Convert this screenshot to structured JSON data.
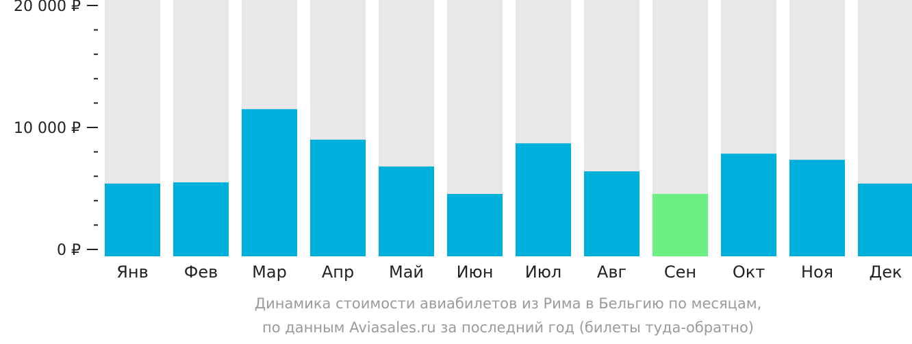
{
  "chart_data": {
    "type": "bar",
    "categories": [
      "Янв",
      "Фев",
      "Мар",
      "Апр",
      "Май",
      "Июн",
      "Июл",
      "Авг",
      "Сен",
      "Окт",
      "Ноя",
      "Дек"
    ],
    "values": [
      5400,
      5500,
      11500,
      9000,
      6800,
      4550,
      8700,
      6400,
      4550,
      7850,
      7350,
      5400
    ],
    "highlight_index": 8,
    "ylim": [
      0,
      20000
    ],
    "yticks": [
      0,
      10000,
      20000
    ],
    "ytick_labels": [
      "0 ₽",
      "10 000 ₽",
      "20 000 ₽"
    ],
    "minor_tick_step": 2000,
    "colors": {
      "bar": "#00b0dc",
      "highlight": "#6cf084",
      "track": "#e8e8e8",
      "axis": "#222222"
    },
    "caption_line1": "Динамика стоимости авиабилетов из Рима в Бельгию по месяцам,",
    "caption_line2": "по данным Aviasales.ru за последний год (билеты туда-обратно)"
  }
}
